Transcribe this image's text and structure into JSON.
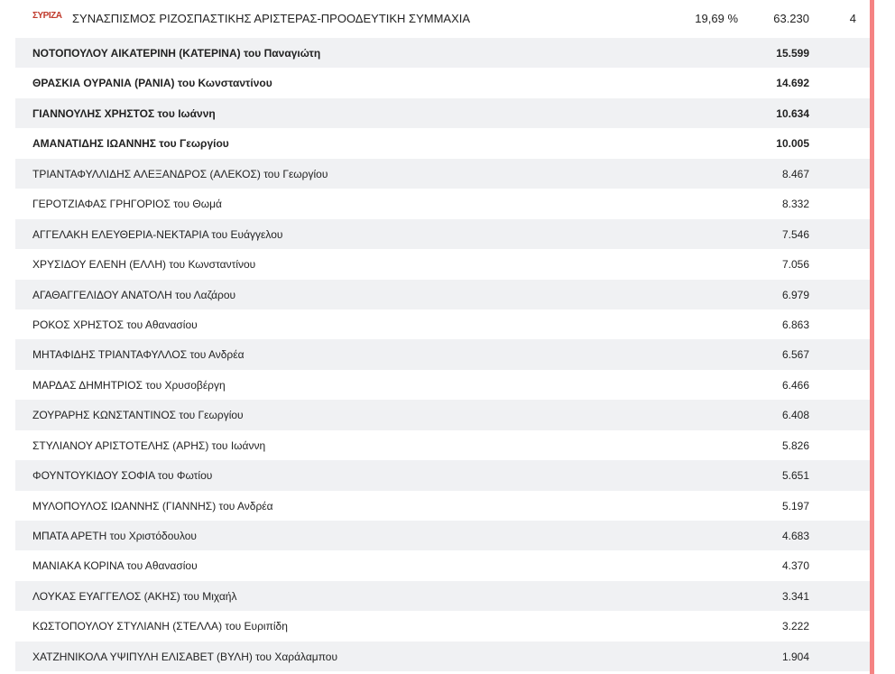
{
  "party": {
    "logo_text": "ΣΥΡΙΖΑ",
    "name": "ΣΥΝΑΣΠΙΣΜΟΣ ΡΙΖΟΣΠΑΣΤΙΚΗΣ ΑΡΙΣΤΕΡΑΣ-ΠΡΟΟΔΕΥΤΙΚΗ ΣΥΜΜΑΧΙΑ",
    "percent": "19,69 %",
    "votes": "63.230",
    "seats": "4"
  },
  "candidates": [
    {
      "name": "ΝΟΤΟΠΟΥΛΟΥ ΑΙΚΑΤΕΡΙΝΗ (ΚΑΤΕΡΙΝΑ) του Παναγιώτη",
      "votes": "15.599",
      "elected": true
    },
    {
      "name": "ΘΡΑΣΚΙΑ ΟΥΡΑΝΙΑ (ΡΑΝΙΑ) του Κωνσταντίνου",
      "votes": "14.692",
      "elected": true
    },
    {
      "name": "ΓΙΑΝΝΟΥΛΗΣ ΧΡΗΣΤΟΣ του Ιωάννη",
      "votes": "10.634",
      "elected": true
    },
    {
      "name": "ΑΜΑΝΑΤΙΔΗΣ ΙΩΑΝΝΗΣ του Γεωργίου",
      "votes": "10.005",
      "elected": true
    },
    {
      "name": "ΤΡΙΑΝΤΑΦΥΛΛΙΔΗΣ ΑΛΕΞΑΝΔΡΟΣ (ΑΛΕΚΟΣ) του Γεωργίου",
      "votes": "8.467",
      "elected": false
    },
    {
      "name": "ΓΕΡΟΤΖΙΑΦΑΣ ΓΡΗΓΟΡΙΟΣ του Θωμά",
      "votes": "8.332",
      "elected": false
    },
    {
      "name": "ΑΓΓΕΛΑΚΗ ΕΛΕΥΘΕΡΙΑ-ΝΕΚΤΑΡΙΑ του Ευάγγελου",
      "votes": "7.546",
      "elected": false
    },
    {
      "name": "ΧΡΥΣΙΔΟΥ ΕΛΕΝΗ (ΕΛΛΗ) του Κωνσταντίνου",
      "votes": "7.056",
      "elected": false
    },
    {
      "name": "ΑΓΑΘΑΓΓΕΛΙΔΟΥ ΑΝΑΤΟΛΗ του Λαζάρου",
      "votes": "6.979",
      "elected": false
    },
    {
      "name": "ΡΟΚΟΣ ΧΡΗΣΤΟΣ του Αθανασίου",
      "votes": "6.863",
      "elected": false
    },
    {
      "name": "ΜΗΤΑΦΙΔΗΣ ΤΡΙΑΝΤΑΦΥΛΛΟΣ του Ανδρέα",
      "votes": "6.567",
      "elected": false
    },
    {
      "name": "ΜΑΡΔΑΣ ΔΗΜΗΤΡΙΟΣ του Χρυσοβέργη",
      "votes": "6.466",
      "elected": false
    },
    {
      "name": "ΖΟΥΡΑΡΗΣ ΚΩΝΣΤΑΝΤΙΝΟΣ του Γεωργίου",
      "votes": "6.408",
      "elected": false
    },
    {
      "name": "ΣΤΥΛΙΑΝΟΥ ΑΡΙΣΤΟΤΕΛΗΣ (ΑΡΗΣ) του Ιωάννη",
      "votes": "5.826",
      "elected": false
    },
    {
      "name": "ΦΟΥΝΤΟΥΚΙΔΟΥ ΣΟΦΙΑ του Φωτίου",
      "votes": "5.651",
      "elected": false
    },
    {
      "name": "ΜΥΛΟΠΟΥΛΟΣ ΙΩΑΝΝΗΣ (ΓΙΑΝΝΗΣ) του Ανδρέα",
      "votes": "5.197",
      "elected": false
    },
    {
      "name": "ΜΠΑΤΑ ΑΡΕΤΗ του Χριστόδουλου",
      "votes": "4.683",
      "elected": false
    },
    {
      "name": "ΜΑΝΙΑΚΑ ΚΟΡΙΝΑ του Αθανασίου",
      "votes": "4.370",
      "elected": false
    },
    {
      "name": "ΛΟΥΚΑΣ ΕΥΑΓΓΕΛΟΣ (ΑΚΗΣ) του Μιχαήλ",
      "votes": "3.341",
      "elected": false
    },
    {
      "name": "ΚΩΣΤΟΠΟΥΛΟΥ ΣΤΥΛΙΑΝΗ (ΣΤΕΛΛΑ) του Ευριπίδη",
      "votes": "3.222",
      "elected": false
    },
    {
      "name": "ΧΑΤΖΗΝΙΚΟΛΑ ΥΨΙΠΥΛΗ ΕΛΙΣΑΒΕΤ (ΒΥΛΗ) του Χαράλαμπου",
      "votes": "1.904",
      "elected": false
    }
  ],
  "colors": {
    "party_bar": "#f58383",
    "row_alt": "#f0f1f3"
  }
}
